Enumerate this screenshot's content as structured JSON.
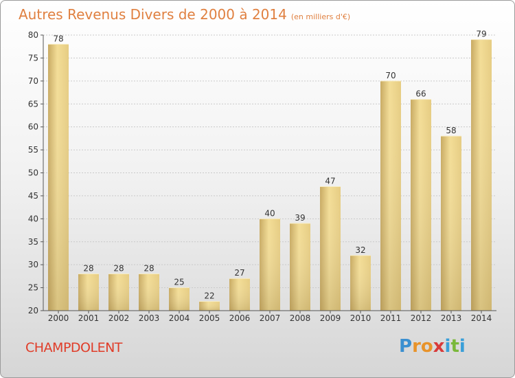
{
  "header": {
    "title": "Autres Revenus Divers de 2000 à 2014",
    "subtitle": "(en milliers d'€)"
  },
  "footer": {
    "commune": "CHAMPDOLENT",
    "logo_letters": [
      "P",
      "r",
      "o",
      "x",
      "i",
      "t",
      "i"
    ],
    "logo_colors": [
      "#3a8fd0",
      "#e8932a",
      "#e8932a",
      "#d83a3a",
      "#3a9fd8",
      "#7ab83a",
      "#3a9fd8"
    ]
  },
  "colors": {
    "title": "#e08040",
    "commune": "#e03c28",
    "bar_light": "#f3dd96",
    "bar_dark": "#c8aa62"
  },
  "chart_data": {
    "type": "bar",
    "title": "Autres Revenus Divers de 2000 à 2014",
    "categories": [
      "2000",
      "2001",
      "2002",
      "2003",
      "2004",
      "2005",
      "2006",
      "2007",
      "2008",
      "2009",
      "2010",
      "2011",
      "2012",
      "2013",
      "2014"
    ],
    "values": [
      78,
      28,
      28,
      28,
      25,
      22,
      27,
      40,
      39,
      47,
      32,
      70,
      66,
      58,
      79
    ],
    "data_labels": [
      "78",
      "28",
      "28",
      "28",
      "25",
      "22",
      "27",
      "40",
      "39",
      "47",
      "32",
      "70",
      "66",
      "58",
      "79"
    ],
    "ylim": [
      20,
      80
    ],
    "y_ticks": [
      "20",
      "25",
      "30",
      "35",
      "40",
      "45",
      "50",
      "55",
      "60",
      "65",
      "70",
      "75",
      "80"
    ],
    "grid": true,
    "xlabel": "",
    "ylabel": ""
  }
}
